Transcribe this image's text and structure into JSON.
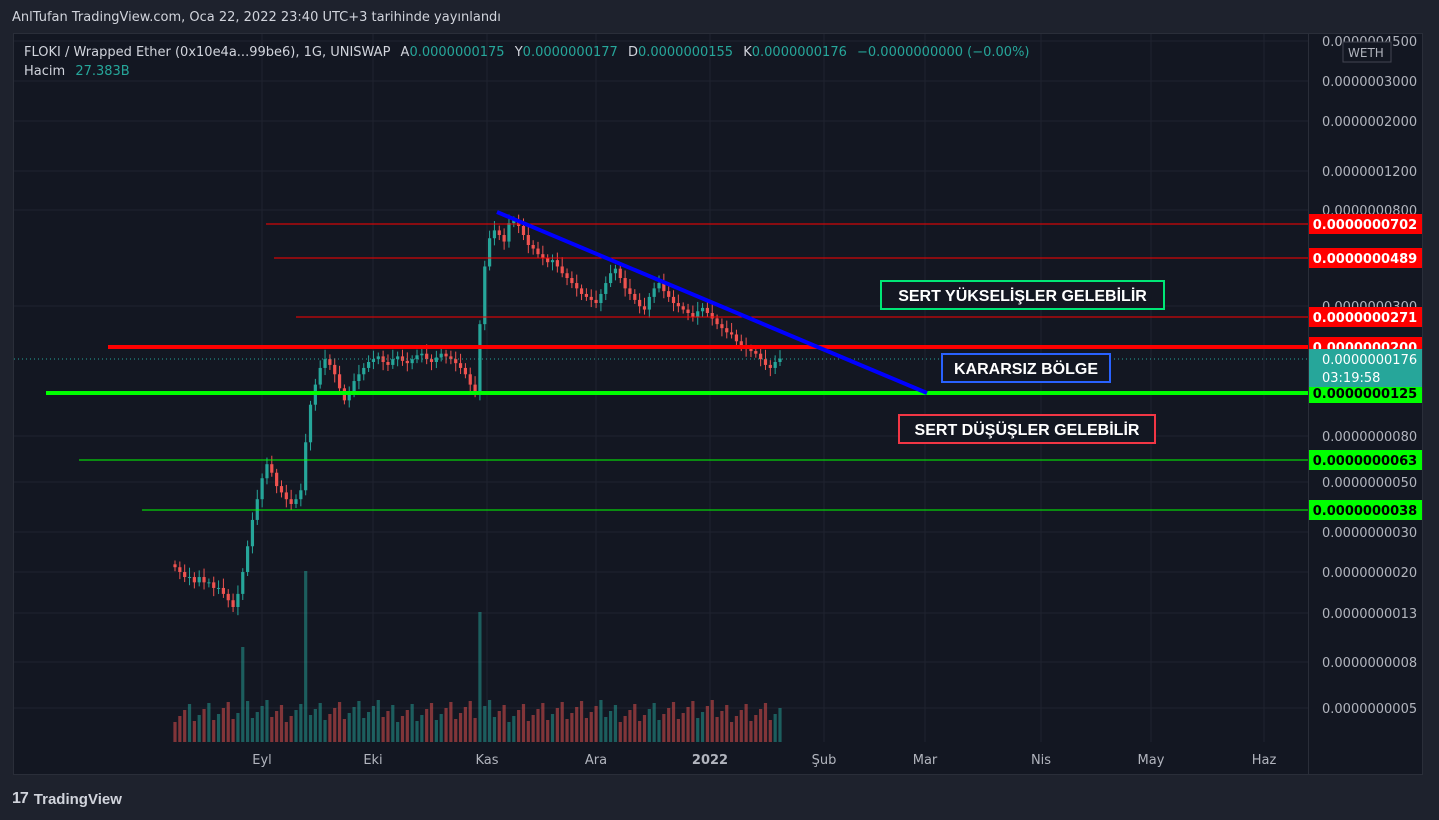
{
  "caption": "AnlTufan TradingView.com, Oca 22, 2022 23:40 UTC+3 tarihinde yayınlandı",
  "legend": {
    "symbol": "FLOKI / Wrapped Ether (0x10e4a...99be6), 1G, UNISWAP",
    "o_label": "A",
    "o_value": "0.0000000175",
    "h_label": "Y",
    "h_value": "0.0000000177",
    "l_label": "D",
    "l_value": "0.0000000155",
    "c_label": "K",
    "c_value": "0.0000000176",
    "change": "−0.0000000000 (−0.00%)",
    "volume_label": "Hacim",
    "volume_value": "27.383B"
  },
  "footer": {
    "brand": "TradingView",
    "logo_glyph": "17"
  },
  "colors": {
    "up": "#26a69a",
    "down": "#ef5350",
    "resistance": "#ff0000",
    "support": "#00ff00",
    "trend": "#0000ff",
    "last_price_tag": "#26a69a"
  },
  "chart_data": {
    "type": "candlestick",
    "title": "FLOKI / Wrapped Ether (0x10e4a...99be6), 1G, UNISWAP",
    "y_scale": "log",
    "y_currency": "WETH",
    "y_ticks": [
      "0.0000004500",
      "0.0000003000",
      "0.0000002000",
      "0.0000001200",
      "0.0000000800",
      "0.0000000300",
      "0.0000000080",
      "0.0000000050",
      "0.0000000030",
      "0.0000000020",
      "0.0000000013",
      "0.0000000008",
      "0.0000000005"
    ],
    "x_ticks": [
      "Eyl",
      "Eki",
      "Kas",
      "Ara",
      "2022",
      "Şub",
      "Mar",
      "Nis",
      "May",
      "Haz"
    ],
    "last_price": {
      "value": "0.0000000176",
      "countdown": "03:19:58"
    },
    "horizontal_levels": [
      {
        "label": "0.0000000702",
        "color": "#ff0000",
        "kind": "resistance"
      },
      {
        "label": "0.0000000489",
        "color": "#ff0000",
        "kind": "resistance"
      },
      {
        "label": "0.0000000271",
        "color": "#ff0000",
        "kind": "resistance"
      },
      {
        "label": "0.0000000200",
        "color": "#ff0000",
        "kind": "resistance-thick"
      },
      {
        "label": "0.0000000125",
        "color": "#00ff00",
        "kind": "support-thick"
      },
      {
        "label": "0.0000000063",
        "color": "#00ff00",
        "kind": "support"
      },
      {
        "label": "0.0000000038",
        "color": "#00ff00",
        "kind": "support"
      }
    ],
    "trendline": {
      "from": {
        "date": "2021-11-04",
        "price": 8e-08
      },
      "to": {
        "date": "2022-02-28",
        "price": 1.25e-08
      }
    },
    "annotations": [
      {
        "text": "SERT YÜKSELİŞLER GELEBİLİR",
        "border": "#00e676"
      },
      {
        "text": "KARARSIZ BÖLGE",
        "border": "#2962ff"
      },
      {
        "text": "SERT DÜŞÜŞLER GELEBİLİR",
        "border": "#f23645"
      }
    ],
    "candles_close": [
      2.1e-09,
      2e-09,
      1.9e-09,
      1.9e-09,
      1.8e-09,
      1.9e-09,
      1.8e-09,
      1.8e-09,
      1.7e-09,
      1.7e-09,
      1.6e-09,
      1.5e-09,
      1.4e-09,
      1.6e-09,
      2e-09,
      2.6e-09,
      3.4e-09,
      4.2e-09,
      5.2e-09,
      6e-09,
      5.5e-09,
      4.8e-09,
      4.5e-09,
      4.2e-09,
      4e-09,
      4.2e-09,
      4.6e-09,
      7.5e-09,
      1.1e-08,
      1.35e-08,
      1.6e-08,
      1.75e-08,
      1.65e-08,
      1.5e-08,
      1.3e-08,
      1.15e-08,
      1.25e-08,
      1.4e-08,
      1.5e-08,
      1.6e-08,
      1.7e-08,
      1.75e-08,
      1.8e-08,
      1.7e-08,
      1.65e-08,
      1.75e-08,
      1.8e-08,
      1.72e-08,
      1.68e-08,
      1.75e-08,
      1.82e-08,
      1.85e-08,
      1.75e-08,
      1.7e-08,
      1.78e-08,
      1.85e-08,
      1.8e-08,
      1.75e-08,
      1.68e-08,
      1.6e-08,
      1.5e-08,
      1.35e-08,
      1.25e-08,
      2.5e-08,
      4.5e-08,
      6e-08,
      6.5e-08,
      6.2e-08,
      5.8e-08,
      7e-08,
      7.2e-08,
      6.8e-08,
      6.2e-08,
      5.6e-08,
      5.4e-08,
      5.1e-08,
      4.9e-08,
      4.7e-08,
      4.8e-08,
      4.5e-08,
      4.2e-08,
      4e-08,
      3.8e-08,
      3.6e-08,
      3.4e-08,
      3.3e-08,
      3.2e-08,
      3.1e-08,
      3.4e-08,
      3.8e-08,
      4.2e-08,
      4.4e-08,
      4e-08,
      3.6e-08,
      3.4e-08,
      3.2e-08,
      3e-08,
      2.9e-08,
      3.3e-08,
      3.6e-08,
      3.8e-08,
      3.5e-08,
      3.3e-08,
      3.1e-08,
      3e-08,
      2.9e-08,
      2.8e-08,
      2.7e-08,
      2.85e-08,
      2.95e-08,
      2.8e-08,
      2.65e-08,
      2.5e-08,
      2.4e-08,
      2.3e-08,
      2.25e-08,
      2.1e-08,
      2e-08,
      1.95e-08,
      1.9e-08,
      1.85e-08,
      1.75e-08,
      1.65e-08,
      1.6e-08,
      1.7e-08,
      1.76e-08
    ]
  }
}
